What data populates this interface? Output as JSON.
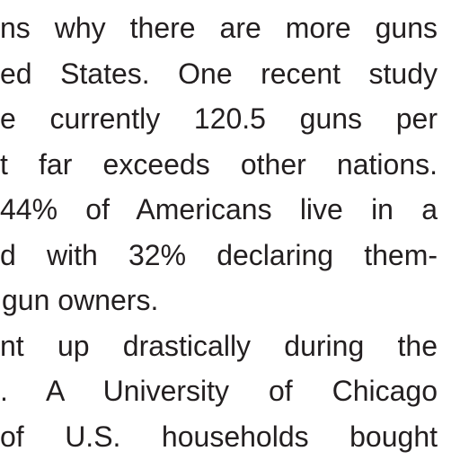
{
  "body": {
    "lines": [
      "ns why there are more guns",
      "ed States. One recent study",
      "e currently 120.5 guns per",
      "t far exceeds other nations.",
      "44% of Americans live in a",
      "d with 32% declaring them-",
      "gun owners.",
      "nt up drastically during the",
      ". A University of Chicago",
      "of U.S. households bought"
    ],
    "paragraph_end_line": 6
  }
}
